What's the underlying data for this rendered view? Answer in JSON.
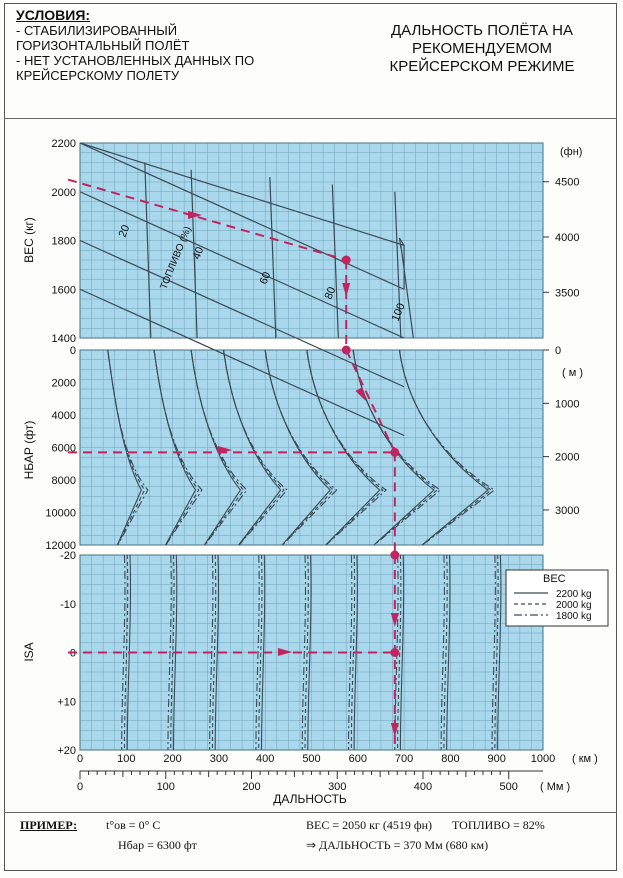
{
  "conditions": {
    "title": "УСЛОВИЯ:",
    "lines": [
      "- СТАБИЛИЗИРОВАННЫЙ",
      "ГОРИЗОНТАЛЬНЫЙ ПОЛЁТ",
      "- НЕТ УСТАНОВЛЕННЫХ ДАННЫХ ПО",
      "КРЕЙСЕРСКОМУ ПОЛЕТУ"
    ]
  },
  "title_lines": [
    "ДАЛЬНОСТЬ ПОЛЁТА НА",
    "РЕКОМЕНДУЕМОМ",
    "КРЕЙСЕРСКОМ РЕЖИМЕ"
  ],
  "example": {
    "title": "ПРИМЕР:",
    "temp": "t°ов = 0° C",
    "alt": "Hбар = 6300 фт",
    "weight": "ВЕС = 2050 кг (4519 фн)",
    "fuel": "ТОПЛИВО = 82%",
    "result": "⇒  ДАЛЬНОСТЬ = 370 Мм (680 км)"
  },
  "colors": {
    "panel_fill": "#a9d8ec",
    "grid": "#5c8fa8",
    "curve": "#3b4a55",
    "example_path": "#c2245f"
  },
  "chart_data": [
    {
      "panel": "weight",
      "type": "line",
      "ylabel": "ВЕС (кг)",
      "ylim": [
        1400,
        2200
      ],
      "yticks": [
        1400,
        1600,
        1800,
        2000,
        2200
      ],
      "y2label": "(фн)",
      "y2ticks": [
        3500,
        4000,
        4500
      ],
      "fuel_label": "ТОПЛИВО (%)",
      "fuel_lines": [
        "20",
        "40",
        "60",
        "80",
        "100"
      ]
    },
    {
      "panel": "altitude",
      "type": "line",
      "ylabel": "HБАР (фт)",
      "ylim": [
        0,
        12000
      ],
      "yticks": [
        0,
        2000,
        4000,
        6000,
        8000,
        10000,
        12000
      ],
      "y2label": "( м )",
      "y2ticks": [
        0,
        1000,
        2000,
        3000
      ]
    },
    {
      "panel": "temperature",
      "type": "line",
      "ylabel": "ISA",
      "ylim": [
        -20,
        20
      ],
      "yticks": [
        "-20",
        "-10",
        "0",
        "+10",
        "+20"
      ],
      "legend_title": "ВЕС",
      "series": [
        {
          "name": "2200 kg",
          "style": "solid"
        },
        {
          "name": "2000 kg",
          "style": "dashed"
        },
        {
          "name": "1800 kg",
          "style": "dashdot"
        }
      ],
      "xlabel": "ДАЛЬНОСТЬ",
      "x_km_unit": "( км )",
      "x_km_ticks": [
        0,
        100,
        200,
        300,
        400,
        500,
        600,
        700,
        800,
        900,
        1000
      ],
      "x_nm_unit": "( Мм )",
      "x_nm_ticks": [
        0,
        100,
        200,
        300,
        400,
        500
      ],
      "example_range_km": 680,
      "example_range_nm": 370
    }
  ]
}
